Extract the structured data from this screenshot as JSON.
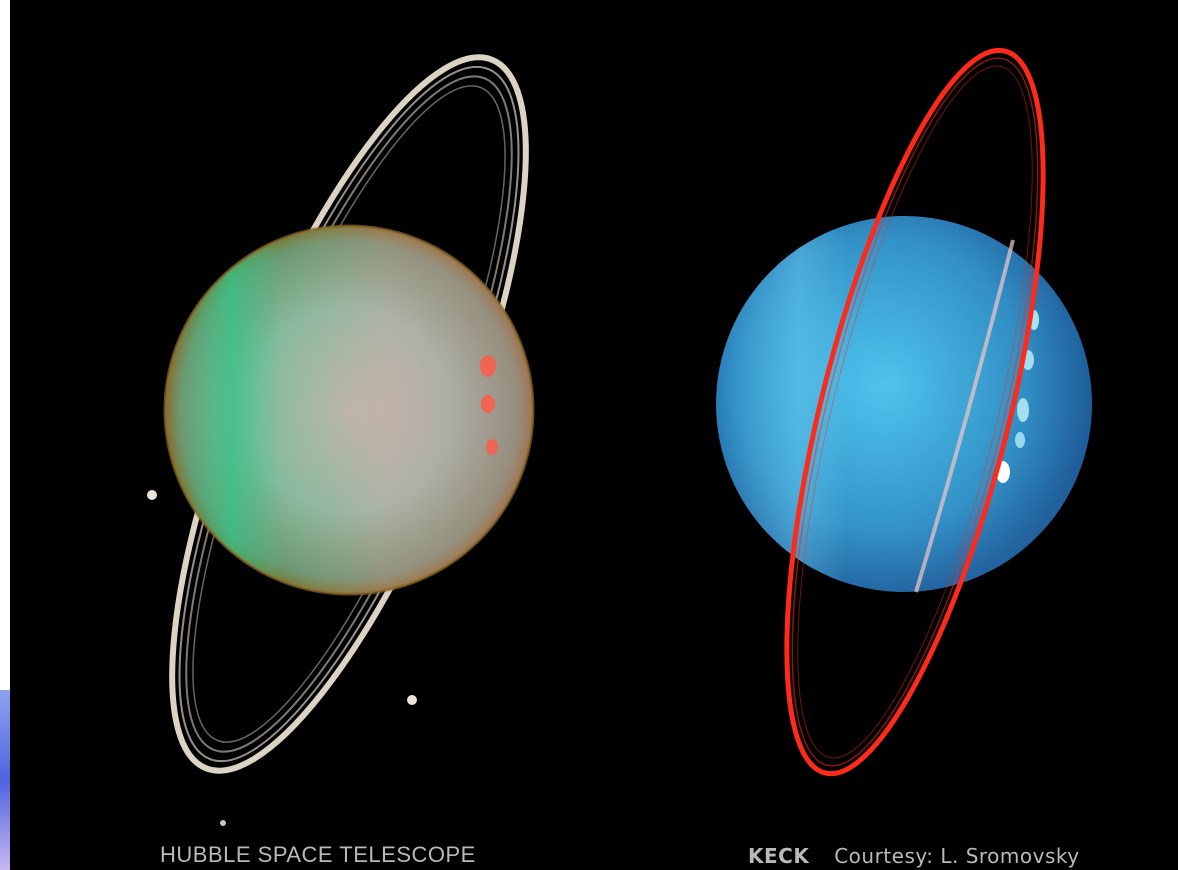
{
  "captions": {
    "left": "HUBBLE   SPACE TELESCOPE",
    "right_label": "KECK",
    "right_credit": "Courtesy: L. Sromovsky"
  },
  "panels": [
    {
      "name": "hubble-uranus",
      "planet_colors": [
        "#2fc889",
        "#c7b6a8",
        "#9d8a76"
      ],
      "ring_color": "#e7dfcf"
    },
    {
      "name": "keck-uranus",
      "planet_colors": [
        "#4cc3ee",
        "#2f8fc6",
        "#1f5f9d"
      ],
      "ring_color": "#ff2a1a"
    }
  ],
  "colors": {
    "background": "#000000",
    "caption": "#b9b9b9"
  }
}
